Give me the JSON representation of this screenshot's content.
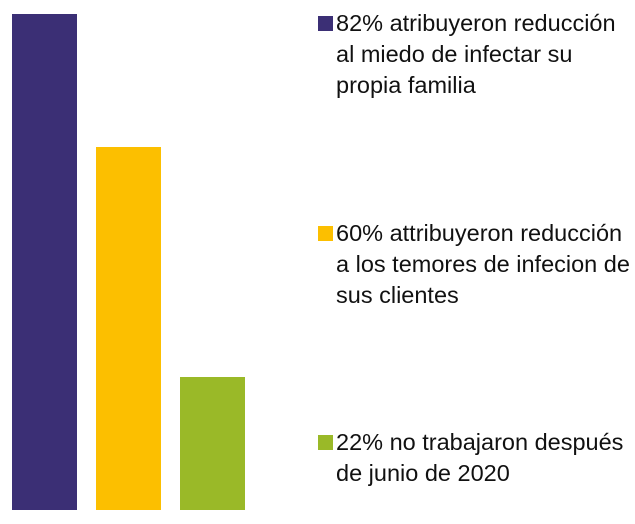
{
  "chart_data": {
    "type": "bar",
    "series": [
      {
        "name": "82% atribuyeron reducción al miedo de infectar su propia familia",
        "color": "#3b2f75",
        "values": [
          82
        ]
      },
      {
        "name": "60% attribuyeron reducción a los temores de infecion de sus clientes",
        "color": "#fcbf00",
        "values": [
          60
        ]
      },
      {
        "name": "22% no trabajaron después de junio de 2020",
        "color": "#9ab928",
        "values": [
          22
        ]
      }
    ]
  }
}
